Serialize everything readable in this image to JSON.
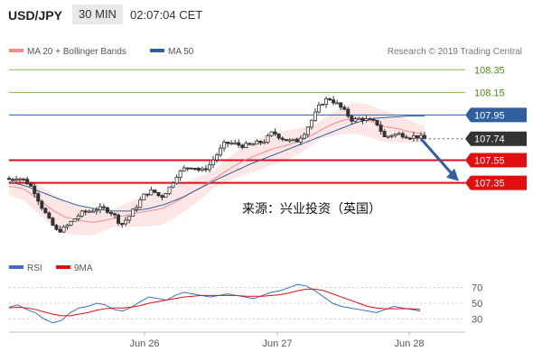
{
  "header": {
    "symbol": "USD/JPY",
    "timeframe": "30 MIN",
    "time": "02:07:04 CET"
  },
  "legend": {
    "ma20_label": "MA 20 + Bollinger Bands",
    "ma50_label": "MA 50",
    "ma20_color": "#f28b8b",
    "ma50_color": "#2f5f9e",
    "credit": "Research © 2019 Trading Central"
  },
  "watermark": "来源：兴业投资（英国）",
  "colors": {
    "up": "#2e8b2e",
    "down": "#c0392b",
    "support": "#e01010",
    "resistance_green": "#7cbf3a",
    "resistance_blue": "#2f5f9e",
    "arrow": "#2f5f9e"
  },
  "chart_data": [
    {
      "type": "candlestick",
      "ylim": [
        106.78,
        108.44
      ],
      "x_ticks": [
        "Jun 26",
        "Jun 27",
        "Jun 28"
      ],
      "levels": [
        {
          "value": 108.35,
          "label": "108.35",
          "kind": "resistance"
        },
        {
          "value": 108.15,
          "label": "108.15",
          "kind": "resistance"
        },
        {
          "value": 107.95,
          "label": "107.95",
          "kind": "pivot"
        },
        {
          "value": 107.74,
          "label": "107.74",
          "kind": "last"
        },
        {
          "value": 107.55,
          "label": "107.55",
          "kind": "support"
        },
        {
          "value": 107.35,
          "label": "107.35",
          "kind": "target"
        }
      ],
      "close_path": [
        107.38,
        107.4,
        107.37,
        107.3,
        107.15,
        107.02,
        106.92,
        106.95,
        107.02,
        107.08,
        107.1,
        107.12,
        107.12,
        107.08,
        106.98,
        107.05,
        107.15,
        107.25,
        107.28,
        107.22,
        107.3,
        107.42,
        107.48,
        107.5,
        107.45,
        107.5,
        107.6,
        107.7,
        107.7,
        107.68,
        107.68,
        107.7,
        107.72,
        107.8,
        107.75,
        107.72,
        107.72,
        107.8,
        107.92,
        108.05,
        108.1,
        108.05,
        107.98,
        107.9,
        107.92,
        107.9,
        107.88,
        107.75,
        107.78,
        107.78,
        107.76,
        107.76,
        107.74
      ],
      "ma20_path": [
        107.32,
        107.3,
        107.22,
        107.12,
        107.05,
        107.02,
        107.0,
        107.02,
        107.05,
        107.08,
        107.1,
        107.12,
        107.18,
        107.25,
        107.32,
        107.4,
        107.48,
        107.55,
        107.6,
        107.65,
        107.68,
        107.72,
        107.78,
        107.85,
        107.9,
        107.92,
        107.9,
        107.85,
        107.83,
        107.8,
        107.78
      ],
      "ma50_path": [
        107.36,
        107.32,
        107.26,
        107.2,
        107.15,
        107.12,
        107.1,
        107.1,
        107.12,
        107.16,
        107.22,
        107.3,
        107.38,
        107.45,
        107.52,
        107.58,
        107.64,
        107.7,
        107.76,
        107.82,
        107.88,
        107.92,
        107.93,
        107.94,
        107.94
      ],
      "band_width": 0.11,
      "forecast_arrow": {
        "from": 107.74,
        "to": 107.35
      }
    },
    {
      "type": "line",
      "panel": "RSI",
      "legend": [
        {
          "name": "RSI",
          "color": "#3a6fc4"
        },
        {
          "name": "9MA",
          "color": "#e01010"
        }
      ],
      "ylim": [
        20,
        80
      ],
      "y_ticks": [
        70,
        50,
        30
      ],
      "rsi": [
        45,
        48,
        42,
        38,
        30,
        25,
        28,
        38,
        44,
        46,
        50,
        48,
        42,
        40,
        45,
        52,
        58,
        56,
        54,
        60,
        64,
        62,
        60,
        58,
        60,
        62,
        60,
        58,
        56,
        60,
        64,
        66,
        70,
        74,
        72,
        66,
        58,
        50,
        46,
        44,
        42,
        40,
        38,
        42,
        46,
        44,
        42,
        40
      ],
      "ma9": [
        44,
        45,
        44,
        42,
        39,
        36,
        34,
        34,
        36,
        38,
        41,
        43,
        44,
        44,
        45,
        47,
        50,
        52,
        54,
        56,
        58,
        59,
        60,
        60,
        60,
        60,
        60,
        59,
        59,
        59,
        60,
        61,
        63,
        66,
        68,
        68,
        66,
        62,
        58,
        54,
        50,
        46,
        44,
        43,
        43,
        43,
        43,
        42
      ]
    }
  ]
}
